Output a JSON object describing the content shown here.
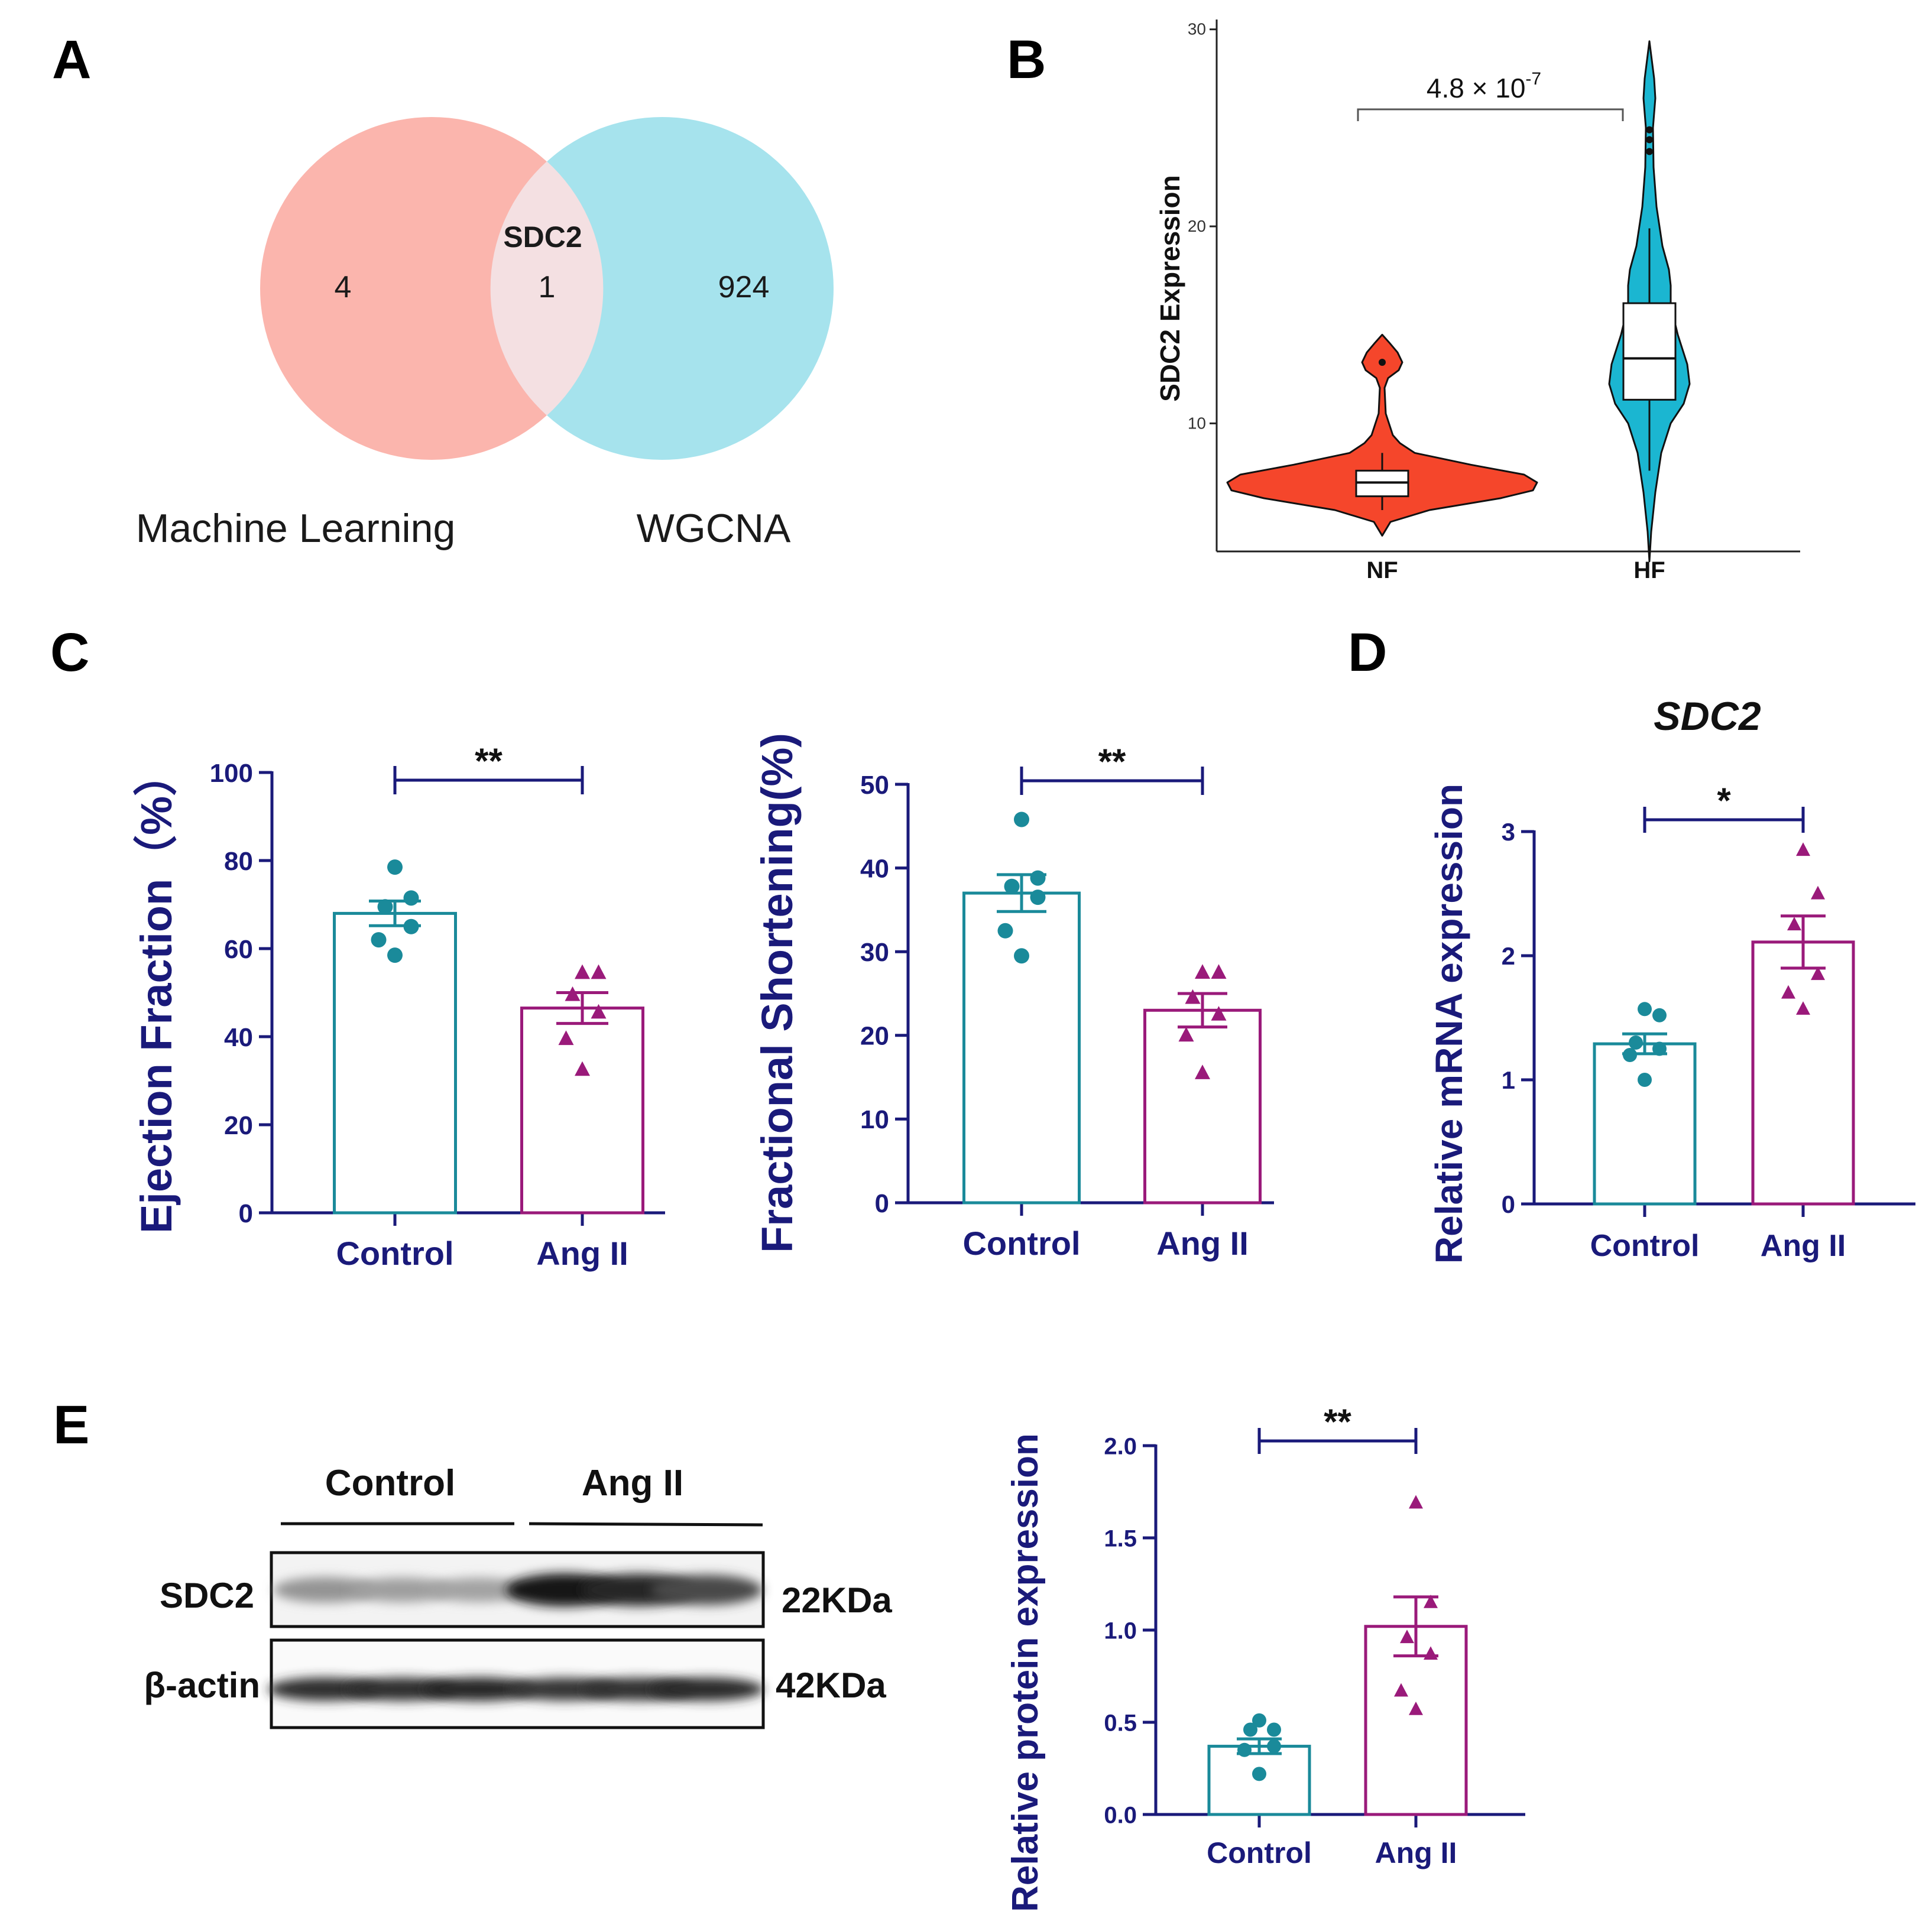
{
  "panel_labels": {
    "a": "A",
    "b": "B",
    "c": "C",
    "d": "D",
    "e": "E"
  },
  "colors": {
    "navy": "#1a1a7a",
    "teal": "#1a8a9a",
    "magenta": "#9a1a7a",
    "venn_left": "#fbb5ad",
    "venn_right": "#a6e3ed",
    "venn_overlap": "#f4e0e2",
    "violin_nf": "#f5462b",
    "violin_hf": "#1bb6d1"
  },
  "chart_data": [
    {
      "id": "A",
      "type": "venn",
      "sets": [
        {
          "name": "Machine Learning",
          "only_count": "4"
        },
        {
          "name": "WGCNA",
          "only_count": "924"
        }
      ],
      "intersection": {
        "label": "SDC2",
        "count": "1"
      }
    },
    {
      "id": "B",
      "type": "violin",
      "ylabel": "SDC2 Expression",
      "ylim": [
        3.5,
        30.5
      ],
      "yticks": [
        10,
        20,
        30
      ],
      "categories": [
        "NF",
        "HF"
      ],
      "pvalue_text": "4.8 × 10",
      "pvalue_exp": "-7",
      "groups": [
        {
          "name": "NF",
          "min": 4.3,
          "q1": 6.3,
          "median": 7.0,
          "q3": 7.6,
          "max": 14.5,
          "whisker_low": 5.6,
          "whisker_high": 8.5,
          "outliers": [
            13.1
          ]
        },
        {
          "name": "HF",
          "min": 3.0,
          "q1": 11.2,
          "median": 13.3,
          "q3": 16.1,
          "max": 29.4,
          "whisker_low": 7.6,
          "whisker_high": 19.9,
          "outliers": [
            24.9,
            24.4,
            23.8
          ]
        }
      ]
    },
    {
      "id": "C1",
      "type": "bar",
      "ylabel": "Ejection Fraction（%）",
      "ylim": [
        0,
        100
      ],
      "yticks": [
        0,
        20,
        40,
        60,
        80,
        100
      ],
      "categories": [
        "Control",
        "Ang II"
      ],
      "values": [
        68.0,
        46.5
      ],
      "sem": [
        2.8,
        3.5
      ],
      "points": [
        [
          78.5,
          71.5,
          69.5,
          65.0,
          62.0,
          58.5
        ],
        [
          54.5,
          54.5,
          49.5,
          45.5,
          39.5,
          32.5
        ]
      ],
      "significance": "**"
    },
    {
      "id": "C2",
      "type": "bar",
      "ylabel": "Fractional Shortening(%)",
      "ylim": [
        0,
        50
      ],
      "yticks": [
        0,
        10,
        20,
        30,
        40,
        50
      ],
      "categories": [
        "Control",
        "Ang II"
      ],
      "values": [
        37.0,
        23.0
      ],
      "sem": [
        2.2,
        2.0
      ],
      "points": [
        [
          45.8,
          38.8,
          37.8,
          36.5,
          32.5,
          29.5
        ],
        [
          27.5,
          27.5,
          24.5,
          22.5,
          20.0,
          15.5
        ]
      ],
      "significance": "**"
    },
    {
      "id": "D",
      "type": "bar",
      "title": "SDC2",
      "ylabel": "Relative mRNA expression",
      "ylim": [
        0,
        3
      ],
      "yticks": [
        0,
        1,
        2,
        3
      ],
      "categories": [
        "Control",
        "Ang II"
      ],
      "values": [
        1.29,
        2.11
      ],
      "sem": [
        0.08,
        0.21
      ],
      "points": [
        [
          1.57,
          1.52,
          1.3,
          1.25,
          1.2,
          1.0
        ],
        [
          2.85,
          2.5,
          2.25,
          1.85,
          1.7,
          1.57
        ]
      ],
      "significance": "*"
    },
    {
      "id": "E",
      "type": "bar",
      "ylabel": "Relative protein expression",
      "ylim": [
        0,
        2.0
      ],
      "yticks": [
        0.0,
        0.5,
        1.0,
        1.5,
        2.0
      ],
      "categories": [
        "Control",
        "Ang II"
      ],
      "values": [
        0.37,
        1.02
      ],
      "sem": [
        0.04,
        0.16
      ],
      "points": [
        [
          0.51,
          0.46,
          0.46,
          0.37,
          0.35,
          0.22
        ],
        [
          1.69,
          1.15,
          0.96,
          0.87,
          0.67,
          0.57
        ]
      ],
      "significance": "**"
    }
  ],
  "western_blot": {
    "groups": [
      "Control",
      "Ang II"
    ],
    "bands": [
      {
        "protein": "SDC2",
        "size": "22KDa",
        "intensities": [
          0.35,
          0.3,
          0.28,
          0.95,
          0.88,
          0.72
        ]
      },
      {
        "protein": "β-actin",
        "size": "42KDa",
        "intensities": [
          0.85,
          0.85,
          0.88,
          0.82,
          0.84,
          0.86
        ]
      }
    ]
  }
}
